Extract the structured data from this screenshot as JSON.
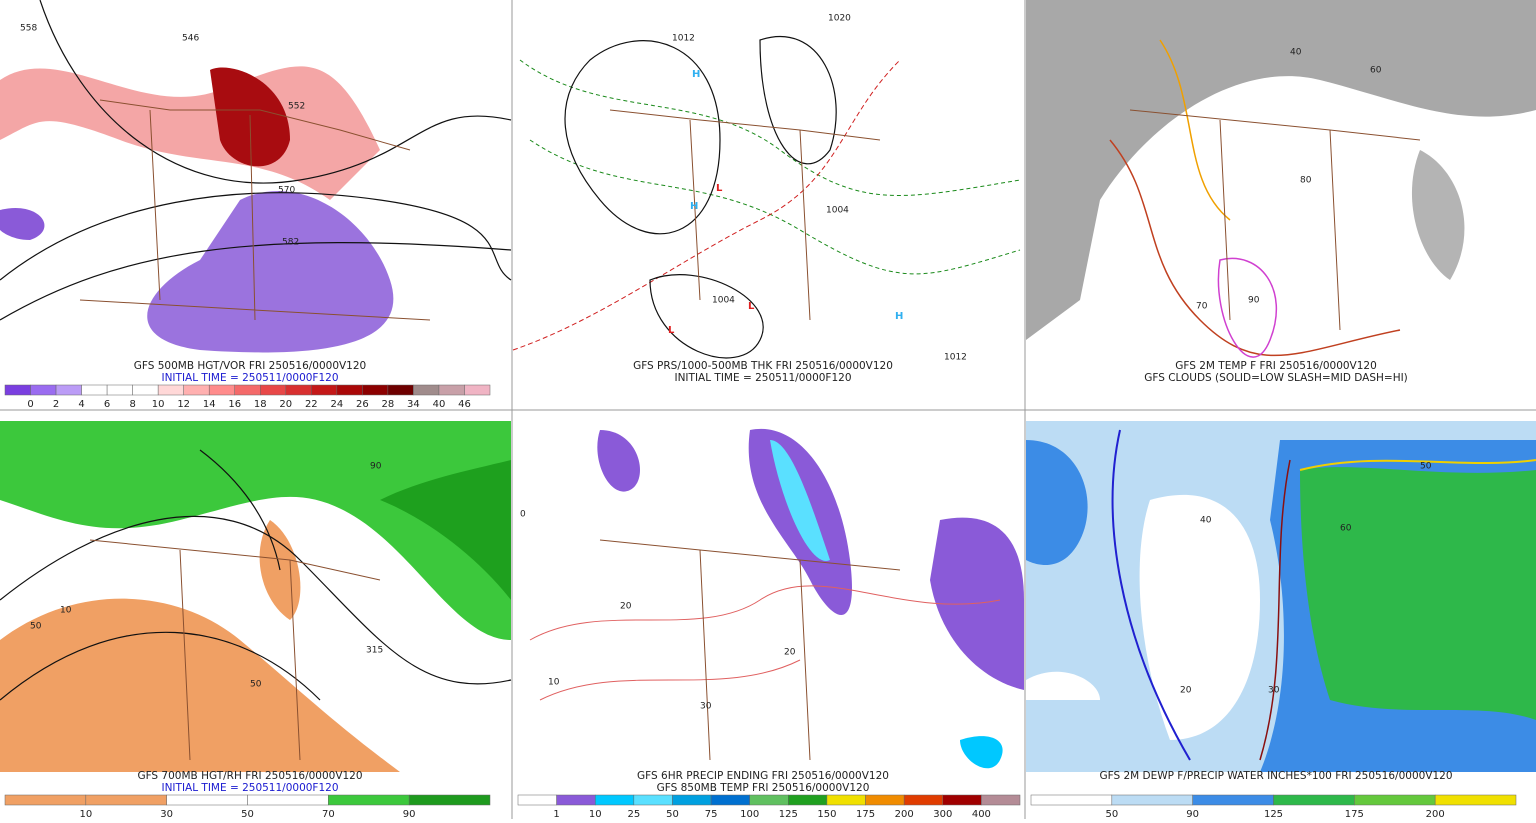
{
  "panels": [
    {
      "captions": [
        "GFS 500MB HGT/VOR FRI 250516/0000V120",
        "INITIAL TIME = 250511/0000F120"
      ],
      "colorbar": {
        "colors": [
          "#7a3fe0",
          "#9a6cf0",
          "#bb9cf6",
          "#ffffff",
          "#ffffff",
          "#ffffff",
          "#ffd8d8",
          "#ffb0b0",
          "#ff8c8c",
          "#f46a6a",
          "#e84848",
          "#d83030",
          "#c41818",
          "#aa0808",
          "#8c0000",
          "#6e0000",
          "#a08c8c",
          "#c8a0a8",
          "#f0b4c4"
        ],
        "labels": [
          "0",
          "2",
          "4",
          "6",
          "8",
          "10",
          "12",
          "14",
          "16",
          "18",
          "20",
          "22",
          "24",
          "26",
          "28",
          "34",
          "40",
          "46"
        ]
      },
      "map_labels": [
        "558",
        "546",
        "552",
        "570",
        "582"
      ]
    },
    {
      "captions": [
        "GFS PRS/1000-500MB THK FRI 250516/0000V120",
        "INITIAL TIME = 250511/0000F120"
      ],
      "map_labels": [
        "1020",
        "1012",
        "1004",
        "1012",
        "1004"
      ]
    },
    {
      "captions": [
        "GFS 2M TEMP F FRI 250516/0000V120",
        "GFS CLOUDS (SOLID=LOW SLASH=MID DASH=HI)"
      ],
      "map_labels": [
        "80",
        "70",
        "90",
        "60",
        "40"
      ]
    },
    {
      "captions": [
        "GFS 700MB HGT/RH FRI 250516/0000V120",
        "INITIAL TIME = 250511/0000F120"
      ],
      "colorbar": {
        "colors": [
          "#f0a064",
          "#f0a064",
          "#ffffff",
          "#ffffff",
          "#3cc83c",
          "#1e9a1e"
        ],
        "labels": [
          "10",
          "30",
          "50",
          "70",
          "90"
        ]
      },
      "map_labels": [
        "50",
        "90",
        "315",
        "50",
        "10"
      ]
    },
    {
      "captions": [
        "GFS 6HR PRECIP ENDING FRI 250516/0000V120",
        "GFS 850MB TEMP FRI 250516/0000V120"
      ],
      "colorbar": {
        "colors": [
          "#ffffff",
          "#8a5ad8",
          "#00c8ff",
          "#5ae0ff",
          "#00a0e0",
          "#0070d0",
          "#60c060",
          "#20a020",
          "#f0e000",
          "#f08c00",
          "#e03c00",
          "#a00000",
          "#b48c96"
        ],
        "labels": [
          "1",
          "10",
          "25",
          "50",
          "75",
          "100",
          "125",
          "150",
          "175",
          "200",
          "300",
          "400"
        ]
      },
      "map_labels": [
        "30",
        "20",
        "10",
        "0",
        "20"
      ]
    },
    {
      "captions": [
        "GFS 2M DEWP F/PRECIP WATER INCHES*100 FRI 250516/0000V120"
      ],
      "colorbar": {
        "colors": [
          "#ffffff",
          "#bcdcf4",
          "#3c8ce6",
          "#2eb84a",
          "#64c83c",
          "#f0e000"
        ],
        "labels": [
          "50",
          "90",
          "125",
          "175",
          "200"
        ]
      },
      "map_labels": [
        "50",
        "30",
        "20",
        "60",
        "40"
      ]
    }
  ]
}
